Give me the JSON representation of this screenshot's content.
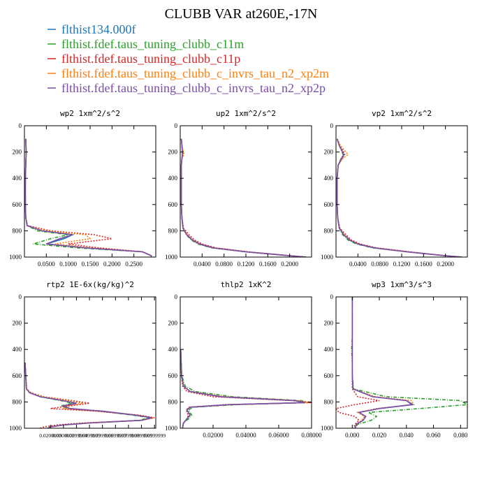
{
  "figure_title": "CLUBB VAR at260E,-17N",
  "colors": {
    "blue": "#1f77b4",
    "green": "#2ca02c",
    "red": "#d62728",
    "orange": "#ff7f0e",
    "purple": "#7b4ea7"
  },
  "chart_data": [
    {
      "type": "line",
      "title": "wp2  1xm^2/s^2",
      "xlim": [
        0.0,
        0.3
      ],
      "ylim": [
        1000,
        0
      ],
      "x_ticks": [
        0.05,
        0.1,
        0.15,
        0.2,
        0.25
      ],
      "x_tick_labels": [
        "0.0500",
        "0.1000",
        "0.1500",
        "0.2000",
        "0.2500"
      ],
      "y_ticks": [
        0,
        200,
        400,
        600,
        800,
        1000
      ],
      "y_tick_labels": [
        "0",
        "200",
        "400",
        "600",
        "800",
        "1000"
      ],
      "levels": [
        100,
        200,
        300,
        400,
        500,
        600,
        700,
        760,
        800,
        830,
        860,
        900,
        930,
        960,
        990,
        1000
      ],
      "series": [
        {
          "name": "flthist134.000f",
          "color_key": "blue",
          "values": [
            0.003,
            0.004,
            0.003,
            0.002,
            0.002,
            0.002,
            0.003,
            0.006,
            0.04,
            0.11,
            0.09,
            0.05,
            0.14,
            0.27,
            0.29,
            0.29
          ]
        },
        {
          "name": "flthist.fdef.taus_tuning_clubb_c11m",
          "color_key": "green",
          "values": [
            0.003,
            0.004,
            0.003,
            0.002,
            0.002,
            0.002,
            0.003,
            0.006,
            0.03,
            0.1,
            0.06,
            0.02,
            0.12,
            0.27,
            0.29,
            0.29
          ]
        },
        {
          "name": "flthist.fdef.taus_tuning_clubb_c11p",
          "color_key": "red",
          "values": [
            0.003,
            0.004,
            0.003,
            0.002,
            0.002,
            0.002,
            0.003,
            0.007,
            0.06,
            0.16,
            0.2,
            0.1,
            0.17,
            0.27,
            0.29,
            0.29
          ]
        },
        {
          "name": "flthist.fdef.taus_tuning_clubb_c_invrs_tau_n2_xp2m",
          "color_key": "orange",
          "values": [
            0.003,
            0.004,
            0.003,
            0.002,
            0.002,
            0.002,
            0.003,
            0.006,
            0.05,
            0.14,
            0.15,
            0.07,
            0.15,
            0.27,
            0.29,
            0.29
          ]
        },
        {
          "name": "flthist.fdef.taus_tuning_clubb_c_invrs_tau_n2_xp2p",
          "color_key": "purple",
          "values": [
            0.003,
            0.004,
            0.003,
            0.002,
            0.002,
            0.002,
            0.003,
            0.006,
            0.04,
            0.11,
            0.08,
            0.05,
            0.14,
            0.27,
            0.29,
            0.29
          ]
        }
      ]
    },
    {
      "type": "line",
      "title": "up2  1xm^2/s^2",
      "xlim": [
        0.0,
        0.24
      ],
      "ylim": [
        1000,
        0
      ],
      "x_ticks": [
        0.04,
        0.08,
        0.12,
        0.16,
        0.2
      ],
      "x_tick_labels": [
        "0.0400",
        "0.0800",
        "0.1200",
        "0.1600",
        "0.2000"
      ],
      "y_ticks": [
        0,
        200,
        400,
        600,
        800,
        1000
      ],
      "y_tick_labels": [
        "0",
        "200",
        "400",
        "600",
        "800",
        "1000"
      ],
      "levels": [
        100,
        150,
        200,
        220,
        250,
        300,
        400,
        500,
        600,
        700,
        780,
        830,
        870,
        900,
        930,
        960,
        990,
        1000
      ],
      "series": [
        {
          "name": "flthist134.000f",
          "color_key": "blue",
          "values": [
            0.002,
            0.003,
            0.004,
            0.004,
            0.003,
            0.002,
            0.002,
            0.002,
            0.002,
            0.003,
            0.005,
            0.012,
            0.022,
            0.035,
            0.06,
            0.12,
            0.2,
            0.23
          ]
        },
        {
          "name": "flthist.fdef.taus_tuning_clubb_c11m",
          "color_key": "green",
          "values": [
            0.002,
            0.003,
            0.004,
            0.004,
            0.003,
            0.002,
            0.002,
            0.002,
            0.002,
            0.003,
            0.005,
            0.011,
            0.02,
            0.032,
            0.057,
            0.12,
            0.2,
            0.23
          ]
        },
        {
          "name": "flthist.fdef.taus_tuning_clubb_c11p",
          "color_key": "red",
          "values": [
            0.002,
            0.003,
            0.005,
            0.005,
            0.003,
            0.002,
            0.002,
            0.002,
            0.002,
            0.003,
            0.006,
            0.016,
            0.026,
            0.04,
            0.065,
            0.125,
            0.2,
            0.23
          ]
        },
        {
          "name": "flthist.fdef.taus_tuning_clubb_c_invrs_tau_n2_xp2m",
          "color_key": "orange",
          "values": [
            0.002,
            0.003,
            0.006,
            0.007,
            0.003,
            0.002,
            0.002,
            0.002,
            0.002,
            0.003,
            0.005,
            0.013,
            0.023,
            0.036,
            0.061,
            0.12,
            0.2,
            0.23
          ]
        },
        {
          "name": "flthist.fdef.taus_tuning_clubb_c_invrs_tau_n2_xp2p",
          "color_key": "purple",
          "values": [
            0.002,
            0.003,
            0.004,
            0.004,
            0.003,
            0.002,
            0.002,
            0.002,
            0.002,
            0.003,
            0.005,
            0.012,
            0.022,
            0.035,
            0.06,
            0.12,
            0.2,
            0.23
          ]
        }
      ]
    },
    {
      "type": "line",
      "title": "vp2  1xm^2/s^2",
      "xlim": [
        0.0,
        0.24
      ],
      "ylim": [
        1000,
        0
      ],
      "x_ticks": [
        0.04,
        0.08,
        0.12,
        0.16,
        0.2
      ],
      "x_tick_labels": [
        "0.0400",
        "0.0800",
        "0.1200",
        "0.1600",
        "0.2000"
      ],
      "y_ticks": [
        0,
        200,
        400,
        600,
        800,
        1000
      ],
      "y_tick_labels": [
        "0",
        "200",
        "400",
        "600",
        "800",
        "1000"
      ],
      "levels": [
        100,
        150,
        200,
        220,
        250,
        300,
        400,
        500,
        600,
        700,
        780,
        830,
        870,
        900,
        930,
        960,
        990,
        1000
      ],
      "series": [
        {
          "name": "flthist134.000f",
          "color_key": "blue",
          "values": [
            0.002,
            0.006,
            0.012,
            0.014,
            0.01,
            0.004,
            0.002,
            0.002,
            0.002,
            0.003,
            0.006,
            0.014,
            0.025,
            0.04,
            0.07,
            0.13,
            0.2,
            0.23
          ]
        },
        {
          "name": "flthist.fdef.taus_tuning_clubb_c11m",
          "color_key": "green",
          "values": [
            0.002,
            0.006,
            0.011,
            0.013,
            0.009,
            0.004,
            0.002,
            0.002,
            0.002,
            0.003,
            0.006,
            0.012,
            0.022,
            0.037,
            0.066,
            0.13,
            0.2,
            0.23
          ]
        },
        {
          "name": "flthist.fdef.taus_tuning_clubb_c11p",
          "color_key": "red",
          "values": [
            0.002,
            0.007,
            0.014,
            0.016,
            0.011,
            0.004,
            0.002,
            0.002,
            0.002,
            0.003,
            0.007,
            0.018,
            0.028,
            0.044,
            0.074,
            0.135,
            0.2,
            0.23
          ]
        },
        {
          "name": "flthist.fdef.taus_tuning_clubb_c_invrs_tau_n2_xp2m",
          "color_key": "orange",
          "values": [
            0.002,
            0.008,
            0.018,
            0.022,
            0.012,
            0.004,
            0.002,
            0.002,
            0.002,
            0.003,
            0.006,
            0.015,
            0.026,
            0.041,
            0.071,
            0.13,
            0.2,
            0.23
          ]
        },
        {
          "name": "flthist.fdef.taus_tuning_clubb_c_invrs_tau_n2_xp2p",
          "color_key": "purple",
          "values": [
            0.002,
            0.006,
            0.012,
            0.014,
            0.01,
            0.004,
            0.002,
            0.002,
            0.002,
            0.003,
            0.006,
            0.014,
            0.025,
            0.04,
            0.07,
            0.13,
            0.2,
            0.23
          ]
        }
      ]
    },
    {
      "type": "line",
      "title": "rtp2  1E-6x(kg/kg)^2",
      "xlim": [
        0.0,
        0.101
      ],
      "ylim": [
        1000,
        0
      ],
      "x_ticks": [
        0.02,
        0.03,
        0.04,
        0.05,
        0.06,
        0.07,
        0.08,
        0.09,
        0.1
      ],
      "x_tick_labels": [
        "0.0200000",
        "0.0300000",
        "0.0399999",
        "0.0499999",
        "0.0599999",
        "0.0699999",
        "0.0799999",
        "0.0899999",
        "0.0999999"
      ],
      "y_ticks": [
        0,
        200,
        400,
        600,
        800,
        1000
      ],
      "y_tick_labels": [
        "0",
        "200",
        "400",
        "600",
        "800",
        "1000"
      ],
      "levels": [
        500,
        700,
        730,
        760,
        790,
        810,
        830,
        850,
        870,
        900,
        920,
        940,
        960,
        975,
        990,
        1000
      ],
      "series": [
        {
          "name": "flthist134.000f",
          "color_key": "blue",
          "values": [
            0.0005,
            0.0015,
            0.004,
            0.012,
            0.03,
            0.04,
            0.03,
            0.035,
            0.06,
            0.085,
            0.098,
            0.09,
            0.05,
            0.03,
            0.02,
            0.018
          ]
        },
        {
          "name": "flthist.fdef.taus_tuning_clubb_c11m",
          "color_key": "green",
          "values": [
            0.0005,
            0.0015,
            0.004,
            0.012,
            0.028,
            0.037,
            0.028,
            0.033,
            0.058,
            0.083,
            0.096,
            0.088,
            0.05,
            0.03,
            0.02,
            0.018
          ]
        },
        {
          "name": "flthist.fdef.taus_tuning_clubb_c11p",
          "color_key": "red",
          "values": [
            0.0005,
            0.0017,
            0.005,
            0.015,
            0.037,
            0.05,
            0.035,
            0.02,
            0.055,
            0.088,
            0.1,
            0.09,
            0.045,
            0.025,
            0.015,
            0.012
          ]
        },
        {
          "name": "flthist.fdef.taus_tuning_clubb_c_invrs_tau_n2_xp2m",
          "color_key": "orange",
          "values": [
            0.0005,
            0.0016,
            0.0045,
            0.014,
            0.034,
            0.045,
            0.032,
            0.03,
            0.058,
            0.086,
            0.099,
            0.09,
            0.05,
            0.03,
            0.02,
            0.018
          ]
        },
        {
          "name": "flthist.fdef.taus_tuning_clubb_c_invrs_tau_n2_xp2p",
          "color_key": "purple",
          "values": [
            0.0005,
            0.0015,
            0.004,
            0.012,
            0.03,
            0.04,
            0.03,
            0.035,
            0.06,
            0.085,
            0.098,
            0.09,
            0.05,
            0.03,
            0.02,
            0.018
          ]
        }
      ]
    },
    {
      "type": "line",
      "title": "thlp2  1xK^2",
      "xlim": [
        0.0,
        0.08
      ],
      "ylim": [
        1000,
        0
      ],
      "x_ticks": [
        0.02,
        0.04,
        0.06,
        0.08
      ],
      "x_tick_labels": [
        "0.02000",
        "0.04000",
        "0.06000",
        "0.08000"
      ],
      "y_ticks": [
        0,
        200,
        400,
        600,
        800,
        1000
      ],
      "y_tick_labels": [
        "0",
        "200",
        "400",
        "600",
        "800",
        "1000"
      ],
      "levels": [
        400,
        600,
        680,
        720,
        760,
        790,
        805,
        820,
        840,
        860,
        880,
        900,
        930,
        960,
        990,
        1000
      ],
      "series": [
        {
          "name": "flthist134.000f",
          "color_key": "blue",
          "values": [
            0.0003,
            0.0008,
            0.002,
            0.006,
            0.025,
            0.07,
            0.076,
            0.03,
            0.006,
            0.004,
            0.005,
            0.006,
            0.004,
            0.002,
            0.0015,
            0.0015
          ]
        },
        {
          "name": "flthist.fdef.taus_tuning_clubb_c11m",
          "color_key": "green",
          "values": [
            0.0003,
            0.001,
            0.003,
            0.009,
            0.032,
            0.074,
            0.078,
            0.035,
            0.008,
            0.005,
            0.006,
            0.007,
            0.005,
            0.002,
            0.0015,
            0.0015
          ]
        },
        {
          "name": "flthist.fdef.taus_tuning_clubb_c11p",
          "color_key": "red",
          "values": [
            0.0003,
            0.0007,
            0.0015,
            0.004,
            0.02,
            0.068,
            0.08,
            0.028,
            0.005,
            0.004,
            0.004,
            0.005,
            0.004,
            0.002,
            0.0015,
            0.0015
          ]
        },
        {
          "name": "flthist.fdef.taus_tuning_clubb_c_invrs_tau_n2_xp2m",
          "color_key": "orange",
          "values": [
            0.0003,
            0.0008,
            0.002,
            0.006,
            0.027,
            0.072,
            0.078,
            0.031,
            0.006,
            0.004,
            0.005,
            0.006,
            0.004,
            0.002,
            0.0015,
            0.0015
          ]
        },
        {
          "name": "flthist.fdef.taus_tuning_clubb_c_invrs_tau_n2_xp2p",
          "color_key": "purple",
          "values": [
            0.0003,
            0.0008,
            0.002,
            0.006,
            0.025,
            0.07,
            0.076,
            0.03,
            0.006,
            0.004,
            0.005,
            0.006,
            0.004,
            0.002,
            0.0015,
            0.0015
          ]
        }
      ]
    },
    {
      "type": "line",
      "title": "wp3  1xm^3/s^3",
      "xlim": [
        -0.012,
        0.085
      ],
      "ylim": [
        1000,
        0
      ],
      "x_ticks": [
        0.0,
        0.02,
        0.04,
        0.06,
        0.08
      ],
      "x_tick_labels": [
        "0.000",
        "0.020",
        "0.040",
        "0.060",
        "0.080"
      ],
      "y_ticks": [
        0,
        200,
        400,
        600,
        800,
        1000
      ],
      "y_tick_labels": [
        "0",
        "200",
        "400",
        "600",
        "800",
        "1000"
      ],
      "levels": [
        0,
        100,
        200,
        300,
        400,
        500,
        600,
        700,
        760,
        790,
        820,
        850,
        880,
        910,
        940,
        970,
        1000
      ],
      "series": [
        {
          "name": "flthist134.000f",
          "color_key": "blue",
          "values": [
            0.0,
            0.0,
            0.0,
            0.0,
            0.0,
            0.0,
            0.0,
            0.0005,
            0.015,
            0.04,
            0.045,
            0.02,
            0.005,
            0.01,
            0.008,
            0.003,
            0.002
          ]
        },
        {
          "name": "flthist.fdef.taus_tuning_clubb_c11m",
          "color_key": "green",
          "values": [
            0.0,
            0.0,
            0.0,
            0.0,
            -0.0005,
            0.0,
            0.0,
            0.001,
            0.025,
            0.08,
            0.085,
            0.05,
            0.012,
            0.018,
            0.014,
            0.004,
            0.002
          ]
        },
        {
          "name": "flthist.fdef.taus_tuning_clubb_c11p",
          "color_key": "red",
          "values": [
            0.0,
            0.0,
            0.0,
            0.0,
            0.0,
            0.0,
            0.0,
            0.0,
            0.004,
            0.02,
            0.002,
            -0.012,
            -0.01,
            0.002,
            0.005,
            0.002,
            0.001
          ]
        },
        {
          "name": "flthist.fdef.taus_tuning_clubb_c_invrs_tau_n2_xp2m",
          "color_key": "orange",
          "values": [
            0.0,
            0.0,
            0.0,
            0.0,
            0.0,
            0.0,
            0.0,
            0.0005,
            0.017,
            0.044,
            0.045,
            0.018,
            0.004,
            0.009,
            0.007,
            0.003,
            0.002
          ]
        },
        {
          "name": "flthist.fdef.taus_tuning_clubb_c_invrs_tau_n2_xp2p",
          "color_key": "purple",
          "values": [
            0.0,
            0.0,
            0.0,
            0.0,
            0.0,
            0.0,
            0.0,
            0.0005,
            0.015,
            0.04,
            0.044,
            0.02,
            0.005,
            0.01,
            0.008,
            0.003,
            0.002
          ]
        }
      ]
    }
  ]
}
